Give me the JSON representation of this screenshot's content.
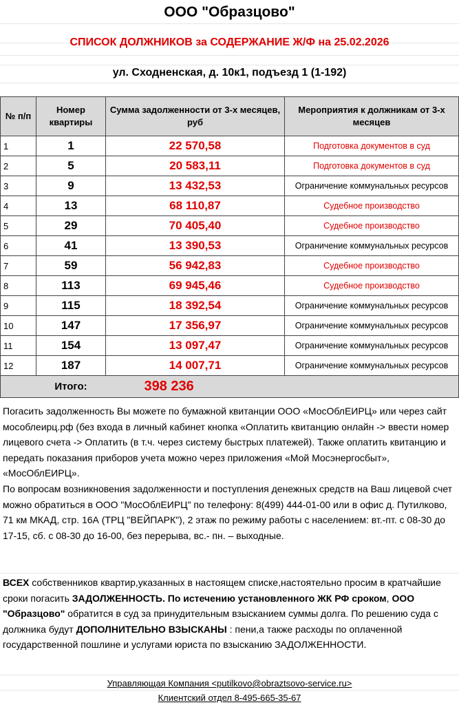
{
  "header": {
    "company": "ООО \"Образцово\"",
    "list_title": "СПИСОК ДОЛЖНИКОВ за СОДЕРЖАНИЕ Ж/Ф  на 25.02.2026",
    "address": "ул. Сходненская, д. 10к1, подъезд 1 (1-192)"
  },
  "table": {
    "columns": [
      "№ п/п",
      "Номер квартиры",
      "Сумма  задолженности от  3-х месяцев, руб",
      "Мероприятия к должникам от 3-х месяцев"
    ],
    "rows": [
      {
        "n": "1",
        "apt": "1",
        "sum": "22 570,58",
        "action": "Подготовка  документов   в суд",
        "red": true
      },
      {
        "n": "2",
        "apt": "5",
        "sum": "20 583,11",
        "action": "Подготовка  документов   в суд",
        "red": true
      },
      {
        "n": "3",
        "apt": "9",
        "sum": "13 432,53",
        "action": "Ограничение  коммунальных  ресурсов",
        "red": false
      },
      {
        "n": "4",
        "apt": "13",
        "sum": "68 110,87",
        "action": "Судебное производство",
        "red": true
      },
      {
        "n": "5",
        "apt": "29",
        "sum": "70 405,40",
        "action": "Судебное производство",
        "red": true
      },
      {
        "n": "6",
        "apt": "41",
        "sum": "13 390,53",
        "action": "Ограничение  коммунальных  ресурсов",
        "red": false
      },
      {
        "n": "7",
        "apt": "59",
        "sum": "56 942,83",
        "action": "Судебное производство",
        "red": true
      },
      {
        "n": "8",
        "apt": "113",
        "sum": "69 945,46",
        "action": "Судебное производство",
        "red": true
      },
      {
        "n": "9",
        "apt": "115",
        "sum": "18 392,54",
        "action": "Ограничение  коммунальных  ресурсов",
        "red": false
      },
      {
        "n": "10",
        "apt": "147",
        "sum": "17 356,97",
        "action": "Ограничение  коммунальных  ресурсов",
        "red": false
      },
      {
        "n": "11",
        "apt": "154",
        "sum": "13 097,47",
        "action": "Ограничение  коммунальных  ресурсов",
        "red": false
      },
      {
        "n": "12",
        "apt": "187",
        "sum": "14 007,71",
        "action": "Ограничение  коммунальных  ресурсов",
        "red": false
      }
    ],
    "total_label": "Итого:",
    "total_value": "398 236"
  },
  "info": {
    "p1": " Погасить задолженность Вы можете по бумажной квитанции ООО «МосОблЕИРЦ» или через сайт мособлеирц.рф (без входа в личный кабинет кнопка «Оплатить квитанцию онлайн -> ввести номер лицевого счета -> Оплатить (в т.ч. через систему быстрых платежей). Также оплатить квитанцию и передать показания приборов учета можно через приложения «Мой Мосэнергосбыт», «МосОблЕИРЦ».",
    "p2": "По вопросам  возникновения задолженности и поступления денежных средств на Ваш лицевой счет можно обратиться в  ООО \"МосОблЕИРЦ\" по телефону:              8(499) 444-01-00 или в офис д. Путилково, 71 км МКАД,  стр. 16А (ТРЦ \"ВЕЙПАРК\"), 2 этаж по режиму работы с населением: вт.-пт. с 08-30 до 17-15, сб. с 08-30 до 16-00, без перерыва, вс.- пн. – выходные."
  },
  "warning": {
    "b1": "ВСЕХ",
    "t1": " собственников квартир,указанных в настоящем списке,настоятельно просим в кратчайшие сроки погасить ",
    "b2": "ЗАДОЛЖЕННОСТЬ.  По истечению установленного ЖК РФ сроком",
    "t2": ", ",
    "b3": "ООО \"Образцово\"",
    "t3": " обратится в суд за принудительным взысканием суммы долга. По решению суда с должника будут ",
    "b4": "ДОПОЛНИТЕЛЬНО ВЗЫСКАНЫ",
    "t4": " : пени,а также расходы по оплаченной государственной пошлине и услугами юриста по взысканию ЗАДОЛЖЕННОСТИ."
  },
  "footer": {
    "company": "Управляющая Компания <putilkovo@obraztsovo-service.ru>",
    "client_dept": "Клиентский  отдел  8-495-665-35-67"
  },
  "colors": {
    "accent_red": "#e00000",
    "header_gray": "#d9d9d9"
  }
}
